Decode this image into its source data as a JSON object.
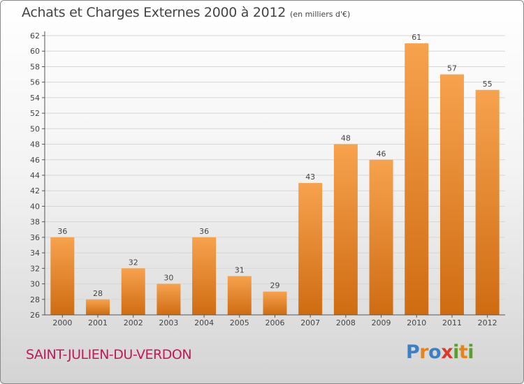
{
  "title": "Achats et Charges Externes 2000 à 2012",
  "unit_label": "(en milliers d'€)",
  "city": "SAINT-JULIEN-DU-VERDON",
  "logo": {
    "text": "Proxiti",
    "letters": [
      {
        "ch": "P",
        "color": "#3d7fc4"
      },
      {
        "ch": "r",
        "color": "#e6841b"
      },
      {
        "ch": "o",
        "color": "#3d7fc4"
      },
      {
        "ch": "x",
        "color": "#d93a2b"
      },
      {
        "ch": "i",
        "color": "#5a9e2f"
      },
      {
        "ch": "t",
        "color": "#e6841b"
      },
      {
        "ch": "i",
        "color": "#5a9e2f"
      }
    ]
  },
  "colors": {
    "bar_light": "#f7a24e",
    "bar_dark": "#cf6c12",
    "grid": "#d6d6d6",
    "axis": "#555555",
    "title": "#444444",
    "city": "#c2185b"
  },
  "chart_data": {
    "type": "bar",
    "title": "Achats et Charges Externes 2000 à 2012",
    "xlabel": "",
    "ylabel": "en milliers d'€",
    "categories": [
      "2000",
      "2001",
      "2002",
      "2003",
      "2004",
      "2005",
      "2006",
      "2007",
      "2008",
      "2009",
      "2010",
      "2011",
      "2012"
    ],
    "values": [
      36,
      28,
      32,
      30,
      36,
      31,
      29,
      43,
      48,
      46,
      61,
      57,
      55
    ],
    "ylim": [
      26,
      62
    ],
    "ytick_step": 2,
    "grid": true
  }
}
